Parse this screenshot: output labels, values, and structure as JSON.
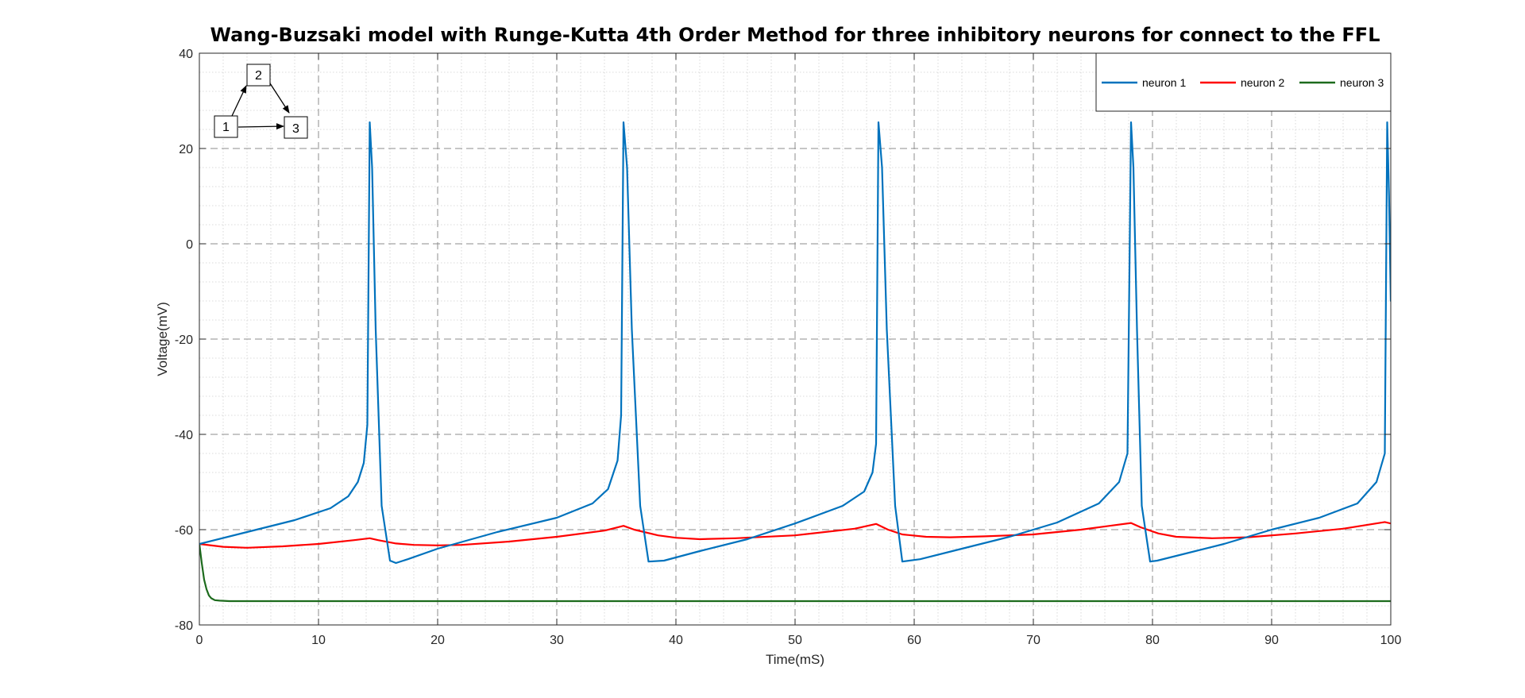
{
  "chart_data": {
    "type": "line",
    "title": "Wang-Buzsaki model with Runge-Kutta 4th Order Method for three inhibitory neurons for connect to the FFL",
    "xlabel": "Time(mS)",
    "ylabel": "Voltage(mV)",
    "xlim": [
      0,
      100
    ],
    "ylim": [
      -80,
      40
    ],
    "xticks": [
      "0",
      "10",
      "20",
      "30",
      "40",
      "50",
      "60",
      "70",
      "80",
      "90",
      "100"
    ],
    "yticks": [
      "-80",
      "-60",
      "-40",
      "-20",
      "0",
      "20",
      "40"
    ],
    "grid": true,
    "minor_grid": true,
    "legend_position": "top-right",
    "series": [
      {
        "name": "neuron 1",
        "color": "#0072BD",
        "x": [
          0,
          4,
          8,
          11,
          12.5,
          13.3,
          13.8,
          14.1,
          14.3,
          14.5,
          14.8,
          15.3,
          16,
          16.5,
          17.5,
          20,
          25,
          30,
          33,
          34.3,
          35.1,
          35.4,
          35.6,
          35.9,
          36.3,
          37,
          37.7,
          39,
          42,
          46,
          50,
          54,
          55.8,
          56.5,
          56.8,
          57,
          57.3,
          57.7,
          58.4,
          59,
          60.5,
          64,
          68,
          72,
          75.5,
          77.2,
          77.9,
          78.2,
          78.4,
          78.7,
          79.1,
          79.8,
          80.4,
          82,
          86,
          90,
          94,
          97.2,
          98.8,
          99.5,
          99.7,
          99.85,
          100
        ],
        "y": [
          -63,
          -60.5,
          -58,
          -55.5,
          -53,
          -50,
          -46,
          -38,
          25.5,
          16,
          -18,
          -55,
          -66.5,
          -67,
          -66.2,
          -64,
          -60.5,
          -57.5,
          -54.5,
          -51.5,
          -45.5,
          -36,
          25.5,
          16,
          -18,
          -55,
          -66.7,
          -66.5,
          -64.5,
          -62,
          -58.7,
          -55,
          -52,
          -48,
          -42,
          25.5,
          16,
          -18,
          -55,
          -66.7,
          -66.2,
          -64,
          -61.5,
          -58.5,
          -54.5,
          -50,
          -44,
          25.5,
          16,
          -18,
          -55,
          -66.7,
          -66.5,
          -65.5,
          -63,
          -60,
          -57.5,
          -54.5,
          -50,
          -44,
          25.5,
          10,
          -12
        ]
      },
      {
        "name": "neuron 2",
        "color": "#FF0000",
        "x": [
          0,
          2,
          4,
          7,
          10,
          13,
          14.3,
          15,
          16.5,
          18,
          20,
          22,
          26,
          30,
          34,
          35.6,
          36.5,
          38.5,
          40,
          42,
          45,
          50,
          55,
          56.8,
          57.8,
          59,
          61,
          63,
          66,
          70,
          74,
          78.2,
          79,
          80.5,
          82,
          85,
          88,
          92,
          96,
          99.5,
          100
        ],
        "y": [
          -63,
          -63.6,
          -63.8,
          -63.5,
          -63,
          -62.2,
          -61.8,
          -62.2,
          -62.9,
          -63.2,
          -63.3,
          -63.2,
          -62.5,
          -61.5,
          -60.2,
          -59.2,
          -60,
          -61.2,
          -61.7,
          -62,
          -61.8,
          -61.2,
          -59.8,
          -58.8,
          -60,
          -61,
          -61.5,
          -61.6,
          -61.4,
          -61,
          -60,
          -58.6,
          -59.5,
          -60.8,
          -61.5,
          -61.8,
          -61.6,
          -60.8,
          -59.8,
          -58.4,
          -58.7
        ]
      },
      {
        "name": "neuron 3",
        "color": "#1D6B1D",
        "x": [
          0,
          0.2,
          0.4,
          0.6,
          0.8,
          1.0,
          1.3,
          1.7,
          2.5,
          5,
          10,
          20,
          40,
          60,
          80,
          100
        ],
        "y": [
          -63,
          -67,
          -70.5,
          -72.5,
          -73.8,
          -74.4,
          -74.8,
          -74.9,
          -75,
          -75,
          -75,
          -75,
          -75,
          -75,
          -75,
          -75
        ]
      }
    ],
    "inset_diagram": {
      "nodes": [
        "1",
        "2",
        "3"
      ],
      "edges": [
        [
          "1",
          "2"
        ],
        [
          "2",
          "3"
        ],
        [
          "1",
          "3"
        ]
      ]
    }
  }
}
